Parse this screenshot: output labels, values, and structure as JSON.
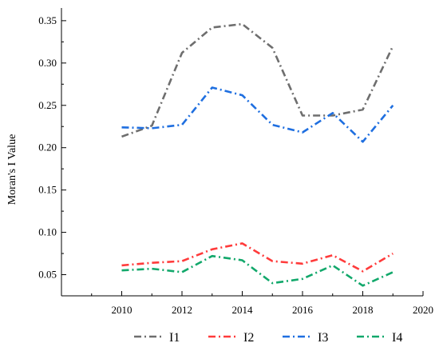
{
  "chart_data": {
    "type": "line",
    "title": "",
    "xlabel": "",
    "ylabel": "Moran's I Value",
    "xlim": [
      2008,
      2020
    ],
    "ylim": [
      0.025,
      0.365
    ],
    "xticks": [
      2010,
      2012,
      2014,
      2016,
      2018,
      2020
    ],
    "yticks": [
      0.05,
      0.1,
      0.15,
      0.2,
      0.25,
      0.3,
      0.35
    ],
    "ytick_labels": [
      "0.05",
      "0.10",
      "0.15",
      "0.20",
      "0.25",
      "0.30",
      "0.35"
    ],
    "grid": false,
    "legend_position": "bottom",
    "x": [
      2010,
      2011,
      2012,
      2013,
      2014,
      2015,
      2016,
      2017,
      2018,
      2019
    ],
    "series": [
      {
        "name": "I1",
        "color": "#6e6e6e",
        "values": [
          0.213,
          0.226,
          0.312,
          0.342,
          0.346,
          0.318,
          0.238,
          0.238,
          0.245,
          0.32
        ]
      },
      {
        "name": "I2",
        "color": "#ff3b3b",
        "values": [
          0.061,
          0.064,
          0.066,
          0.08,
          0.087,
          0.066,
          0.063,
          0.073,
          0.054,
          0.075
        ]
      },
      {
        "name": "I3",
        "color": "#1f6fe0",
        "values": [
          0.224,
          0.223,
          0.227,
          0.271,
          0.262,
          0.227,
          0.218,
          0.241,
          0.207,
          0.25
        ]
      },
      {
        "name": "I4",
        "color": "#12a86b",
        "values": [
          0.055,
          0.057,
          0.053,
          0.072,
          0.067,
          0.04,
          0.045,
          0.061,
          0.037,
          0.053
        ]
      }
    ]
  }
}
